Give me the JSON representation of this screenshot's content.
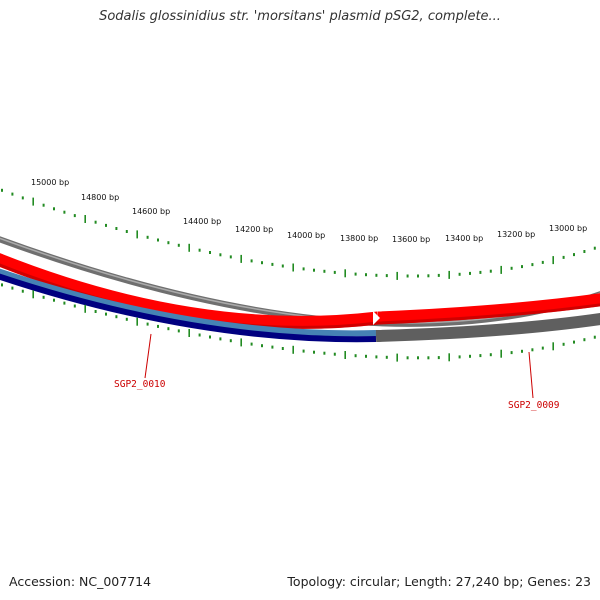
{
  "title": "Sodalis glossinidius str. 'morsitans' plasmid pSG2, complete...",
  "footer": {
    "accession": "Accession: NC_007714",
    "summary": "Topology: circular; Length: 27,240 bp; Genes: 23"
  },
  "colors": {
    "backbone": "#7a7a7a",
    "forward_gene": "#ff0000",
    "reverse_gene_1": "#4682b4",
    "reverse_gene_2": "#000080",
    "reverse_gene_3": "#606060",
    "ticks": "#228b22",
    "gene_label": "#cc0000"
  },
  "scale_ticks": [
    {
      "label": "15000 bp"
    },
    {
      "label": "14800 bp"
    },
    {
      "label": "14600 bp"
    },
    {
      "label": "14400 bp"
    },
    {
      "label": "14200 bp"
    },
    {
      "label": "14000 bp"
    },
    {
      "label": "13800 bp"
    },
    {
      "label": "13600 bp"
    },
    {
      "label": "13400 bp"
    },
    {
      "label": "13200 bp"
    },
    {
      "label": "13000 bp"
    }
  ],
  "genes": [
    {
      "name": "SGP2_0010"
    },
    {
      "name": "SGP2_0009"
    }
  ]
}
